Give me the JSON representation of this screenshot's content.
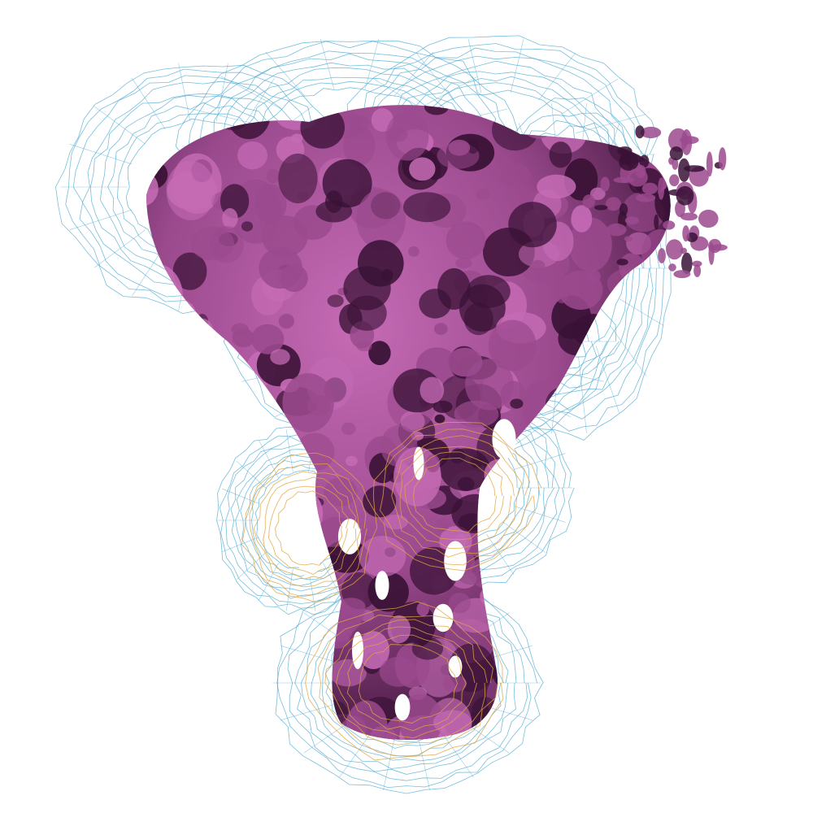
{
  "scene": {
    "subject": "cryo-em-density-map",
    "colors": {
      "background": "#ffffff",
      "density_surface": "#9b4a8e",
      "density_highlight": "#c56bb5",
      "density_shadow": "#3a1236",
      "outer_mesh": "#4aa8d0",
      "inner_mesh": "#e2a640"
    },
    "icons": [
      "density-surface",
      "outer-mesh-envelope",
      "inner-mesh-envelope"
    ]
  }
}
